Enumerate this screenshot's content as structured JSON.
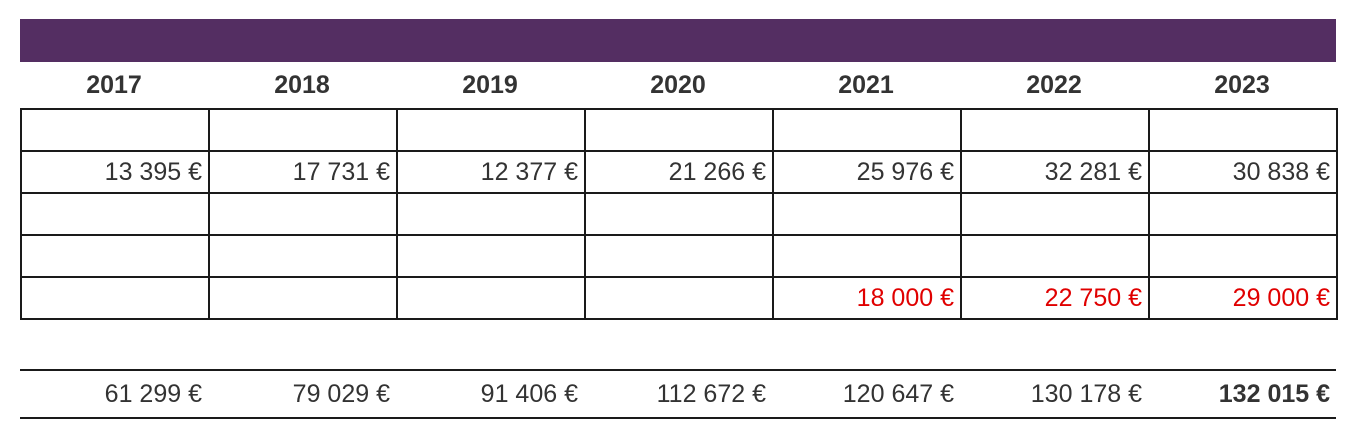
{
  "colors": {
    "header": "#542e62",
    "text": "#333333",
    "highlight": "#e00000"
  },
  "years": [
    "2017",
    "2018",
    "2019",
    "2020",
    "2021",
    "2022",
    "2023"
  ],
  "rows": [
    [
      "",
      "",
      "",
      "",
      "",
      "",
      ""
    ],
    [
      "13 395 €",
      "17 731 €",
      "12 377 €",
      "21 266 €",
      "25 976 €",
      "32 281 €",
      "30 838 €"
    ],
    [
      "",
      "",
      "",
      "",
      "",
      "",
      ""
    ],
    [
      "",
      "",
      "",
      "",
      "",
      "",
      ""
    ],
    [
      "",
      "",
      "",
      "",
      "18 000 €",
      "22 750 €",
      "29 000 €"
    ]
  ],
  "totals": [
    "61 299 €",
    "79 029 €",
    "91 406 €",
    "112 672 €",
    "120 647 €",
    "130 178 €",
    "132 015 €"
  ]
}
